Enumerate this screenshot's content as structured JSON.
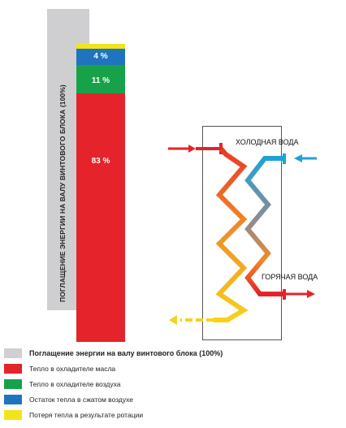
{
  "vertical_label": "ПОГЛАЩЕНИЕ ЭНЕРГИИ НА ВАЛУ ВИНТОВОГО БЛОКА (100%)",
  "bar": {
    "segments": [
      {
        "label": "",
        "value": 2,
        "color": "#f3e41a"
      },
      {
        "label": "4 %",
        "value": 4,
        "color": "#1f74be"
      },
      {
        "label": "11 %",
        "value": 11,
        "color": "#17a24a"
      },
      {
        "label": "83 %",
        "value": 83,
        "color": "#e4232a"
      }
    ]
  },
  "exchanger": {
    "cold_label": "ХОЛОДНАЯ ВОДА",
    "hot_label": "ГОРЯЧАЯ ВОДА"
  },
  "legend": [
    {
      "text": "Поглащение энергии на валу винтового блока (100%)",
      "color": "#cfcfd1",
      "bold": true
    },
    {
      "text": "Тепло в охладителе масла",
      "color": "#e4232a",
      "bold": false
    },
    {
      "text": "Тепло в охладителе воздуха",
      "color": "#17a24a",
      "bold": false
    },
    {
      "text": "Остаток тепла в сжатом воздухе",
      "color": "#1f74be",
      "bold": false
    },
    {
      "text": "Потеря тепла в результате ротации",
      "color": "#f3e41a",
      "bold": false
    }
  ]
}
